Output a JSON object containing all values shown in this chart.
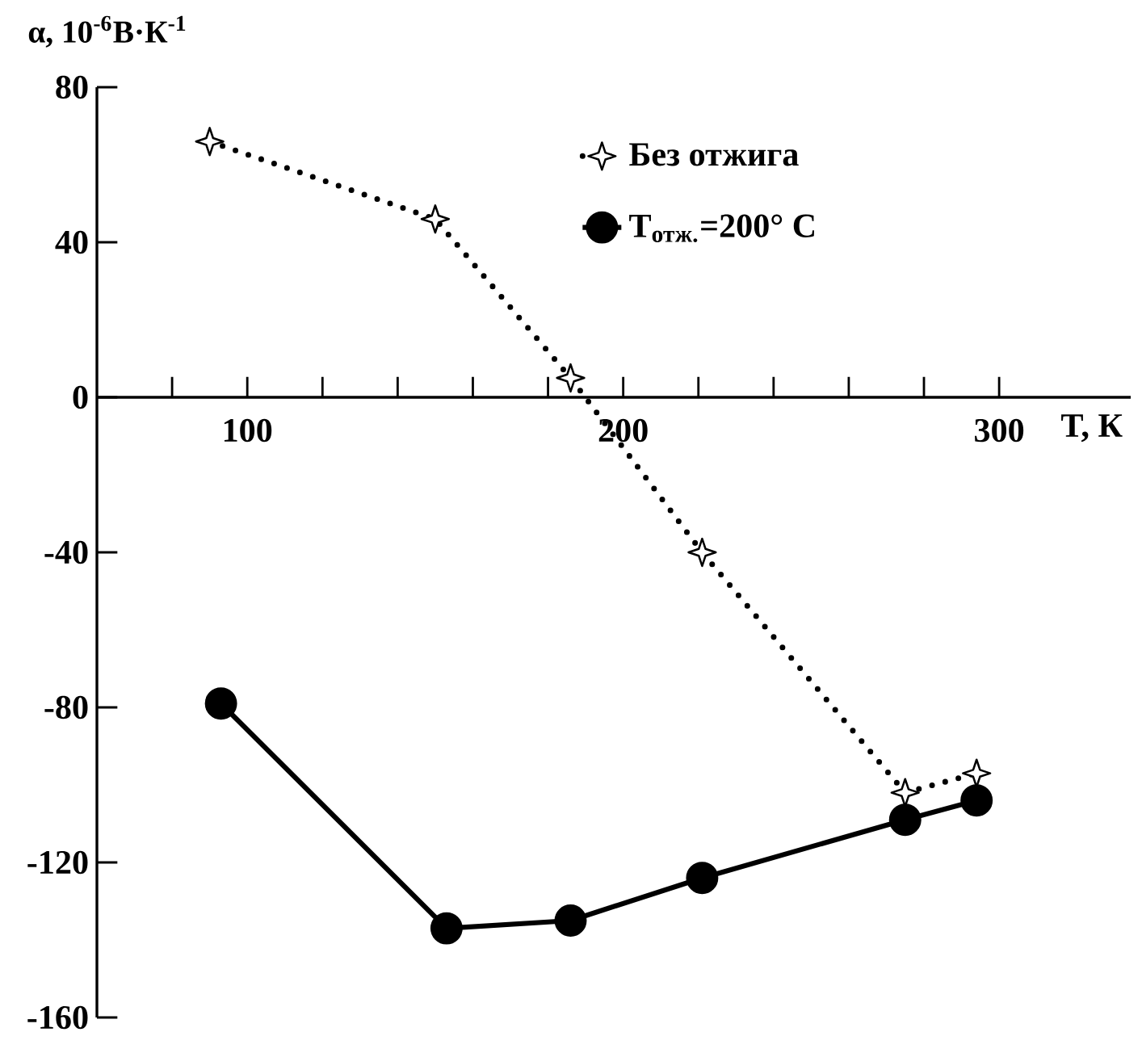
{
  "chart_data": {
    "type": "line",
    "xlabel": "T, К",
    "ylabel": "α, 10$^{-6}$В·К$^{-1}$",
    "xlim": [
      60,
      335
    ],
    "ylim": [
      -160,
      80
    ],
    "xticks": [
      {
        "value": 80,
        "label": null
      },
      100,
      {
        "value": 120,
        "label": null
      },
      {
        "value": 140,
        "label": null
      },
      {
        "value": 160,
        "label": null
      },
      {
        "value": 180,
        "label": null
      },
      200,
      {
        "value": 220,
        "label": null
      },
      {
        "value": 240,
        "label": null
      },
      {
        "value": 260,
        "label": null
      },
      {
        "value": 280,
        "label": null
      },
      300
    ],
    "yticks": [
      80,
      40,
      0,
      -40,
      -80,
      -120,
      -160
    ],
    "grid": false,
    "legend": "top right",
    "series": [
      {
        "name": "Без отжига",
        "color": "#000000",
        "marker": "star",
        "line_style": "dotted",
        "x": [
          90,
          150,
          186,
          221,
          275,
          294
        ],
        "values": [
          66,
          46,
          5,
          -40,
          -102,
          -97
        ]
      },
      {
        "name": "T$_{отж.}$=200° C",
        "color": "#000000",
        "marker": "circle",
        "line_style": "solid",
        "x": [
          93,
          153,
          186,
          221,
          275,
          294
        ],
        "values": [
          -79,
          -137,
          -135,
          -124,
          -109,
          -104
        ]
      }
    ]
  }
}
